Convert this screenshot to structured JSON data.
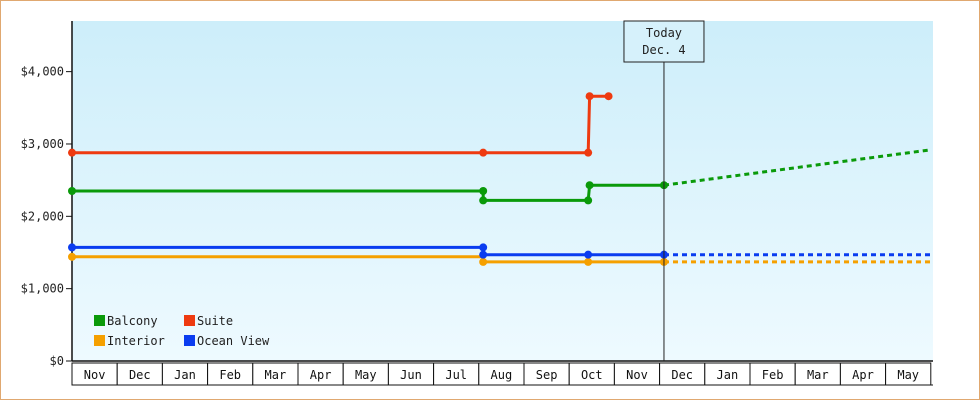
{
  "chart_data": {
    "type": "line",
    "title": "",
    "xlabel": "",
    "ylabel": "",
    "ylim": [
      0,
      4700
    ],
    "y_ticks": [
      "$0",
      "$1,000",
      "$2,000",
      "$3,000",
      "$4,000"
    ],
    "y_tick_values": [
      0,
      1000,
      2000,
      3000,
      4000
    ],
    "x_range": [
      "2021-11-01",
      "2023-05-31"
    ],
    "months": [
      "Nov",
      "Dec",
      "Jan",
      "Feb",
      "Mar",
      "Apr",
      "May",
      "Jun",
      "Jul",
      "Aug",
      "Sep",
      "Oct",
      "Nov",
      "Dec",
      "Jan",
      "Feb",
      "Mar",
      "Apr",
      "May"
    ],
    "today": {
      "line1": "Today",
      "line2": "Dec. 4",
      "date": "2022-12-04"
    },
    "grid": false,
    "legend_position": "bottom-left",
    "background_gradient": [
      "#cdeefa",
      "#eefaff"
    ],
    "series": [
      {
        "name": "Balcony",
        "color": "#0a9a0a",
        "points": [
          {
            "x": "2021-11-01",
            "y": 2350,
            "marker": true
          },
          {
            "x": "2022-08-04",
            "y": 2350,
            "marker": true
          },
          {
            "x": "2022-08-04",
            "y": 2220,
            "marker": true
          },
          {
            "x": "2022-10-14",
            "y": 2220,
            "marker": true
          },
          {
            "x": "2022-10-15",
            "y": 2430,
            "marker": true
          },
          {
            "x": "2022-12-04",
            "y": 2430,
            "marker": true
          }
        ],
        "forecast": [
          {
            "x": "2022-12-04",
            "y": 2430
          },
          {
            "x": "2023-06-01",
            "y": 2920
          }
        ]
      },
      {
        "name": "Suite",
        "color": "#ee3a10",
        "points": [
          {
            "x": "2021-11-01",
            "y": 2880,
            "marker": true
          },
          {
            "x": "2022-08-04",
            "y": 2880,
            "marker": true
          },
          {
            "x": "2022-10-14",
            "y": 2880,
            "marker": true
          },
          {
            "x": "2022-10-15",
            "y": 3660,
            "marker": true
          },
          {
            "x": "2022-10-28",
            "y": 3660,
            "marker": true
          }
        ],
        "forecast": []
      },
      {
        "name": "Interior",
        "color": "#f5a000",
        "points": [
          {
            "x": "2021-11-01",
            "y": 1440,
            "marker": true
          },
          {
            "x": "2022-08-04",
            "y": 1440,
            "marker": false
          },
          {
            "x": "2022-08-04",
            "y": 1370,
            "marker": true
          },
          {
            "x": "2022-10-14",
            "y": 1370,
            "marker": true
          },
          {
            "x": "2022-12-04",
            "y": 1370,
            "marker": true
          }
        ],
        "forecast": [
          {
            "x": "2022-12-04",
            "y": 1370
          },
          {
            "x": "2023-06-01",
            "y": 1370
          }
        ]
      },
      {
        "name": "Ocean View",
        "color": "#0a3cf0",
        "points": [
          {
            "x": "2021-11-01",
            "y": 1570,
            "marker": true
          },
          {
            "x": "2022-08-04",
            "y": 1570,
            "marker": true
          },
          {
            "x": "2022-08-04",
            "y": 1470,
            "marker": true
          },
          {
            "x": "2022-10-14",
            "y": 1470,
            "marker": true
          },
          {
            "x": "2022-12-04",
            "y": 1470,
            "marker": true
          }
        ],
        "forecast": [
          {
            "x": "2022-12-04",
            "y": 1470
          },
          {
            "x": "2023-06-01",
            "y": 1470
          }
        ]
      }
    ]
  }
}
